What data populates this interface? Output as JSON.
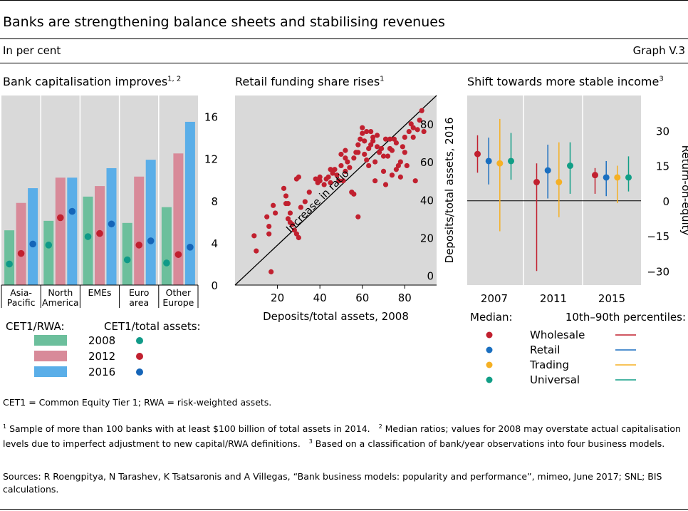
{
  "header": {
    "title": "Banks are strengthening balance sheets and stabilising revenues",
    "subtitle": "In per cent",
    "graph_label": "Graph V.3"
  },
  "panels": {
    "left": {
      "title": "Bank capitalisation improves",
      "sup": "1, 2"
    },
    "middle": {
      "title": "Retail funding share rises",
      "sup": "1",
      "xlabel": "Deposits/total assets, 2008",
      "ylabel": "Deposits/total assets, 2016",
      "annotation": "Increase in ratio"
    },
    "right": {
      "title": "Shift towards more stable income",
      "sup": "3",
      "ylabel": "Return-on-equity"
    }
  },
  "legend_left": {
    "rwa_title": "CET1/RWA:",
    "ta_title": "CET1/total assets:",
    "items": [
      {
        "label": "2008",
        "color": "#6cbf9c",
        "dot": "#109a88"
      },
      {
        "label": "2012",
        "color": "#d88a99",
        "dot": "#c1202f"
      },
      {
        "label": "2016",
        "color": "#5aaee8",
        "dot": "#1565b8"
      }
    ]
  },
  "legend_right": {
    "median_title": "Median:",
    "pct_title": "10th–90th percentiles:",
    "items": [
      {
        "label": "Wholesale",
        "color": "#c1202f"
      },
      {
        "label": "Retail",
        "color": "#1a6fc0"
      },
      {
        "label": "Trading",
        "color": "#f5b024"
      },
      {
        "label": "Universal",
        "color": "#119e86"
      }
    ]
  },
  "notes": {
    "abbrev": "CET1 = Common Equity Tier 1; RWA = risk-weighted assets.",
    "fn1": "Sample of more than 100 banks with at least $100 billion of total assets in 2014.",
    "fn2": "Median ratios; values for 2008 may overstate actual capitalisation levels due to imperfect adjustment to new capital/RWA definitions.",
    "fn3": "Based on a classification of bank/year observations into four business models.",
    "sources": "Sources: R Roengpitya, N Tarashev, K Tsatsaronis and A Villegas, “Bank business models: popularity and performance”, mimeo, June 2017; SNL; BIS calculations."
  },
  "chart_data": [
    {
      "type": "bar",
      "title": "Bank capitalisation improves",
      "categories": [
        "Asia-Pacific",
        "North America",
        "EMEs",
        "Euro area",
        "Other Europe"
      ],
      "ylim": [
        0,
        18
      ],
      "yticks": [
        0,
        4,
        8,
        12,
        16
      ],
      "series": [
        {
          "name": "2008",
          "values": [
            5.2,
            6.1,
            8.4,
            5.9,
            7.4
          ]
        },
        {
          "name": "2012",
          "values": [
            7.8,
            10.2,
            9.4,
            10.3,
            12.5
          ]
        },
        {
          "name": "2016",
          "values": [
            9.2,
            10.2,
            11.1,
            11.9,
            15.5
          ]
        }
      ],
      "dot_series": [
        {
          "name": "2008",
          "values": [
            2.0,
            3.8,
            4.6,
            2.4,
            2.1
          ]
        },
        {
          "name": "2012",
          "values": [
            3.0,
            6.4,
            4.9,
            3.8,
            2.9
          ]
        },
        {
          "name": "2016",
          "values": [
            3.9,
            7.0,
            5.8,
            4.2,
            3.6
          ]
        }
      ]
    },
    {
      "type": "scatter",
      "title": "Retail funding share rises",
      "xlabel": "Deposits/total assets, 2008",
      "ylabel": "Deposits/total assets, 2016",
      "xlim": [
        0,
        95
      ],
      "ylim": [
        -5,
        95
      ],
      "xticks": [
        20,
        40,
        60,
        80
      ],
      "yticks": [
        0,
        20,
        40,
        60,
        80
      ],
      "reference_line": "45-degree",
      "points": [
        [
          9,
          21
        ],
        [
          10,
          13
        ],
        [
          15,
          31
        ],
        [
          16,
          26
        ],
        [
          16,
          22
        ],
        [
          17,
          2
        ],
        [
          18,
          37
        ],
        [
          19,
          33
        ],
        [
          23,
          46
        ],
        [
          24,
          42
        ],
        [
          24,
          38
        ],
        [
          25,
          38
        ],
        [
          25,
          30
        ],
        [
          26,
          28
        ],
        [
          27,
          27
        ],
        [
          26,
          33
        ],
        [
          28,
          24
        ],
        [
          29,
          22
        ],
        [
          30,
          20
        ],
        [
          31,
          36
        ],
        [
          33,
          39
        ],
        [
          35,
          44
        ],
        [
          29,
          51
        ],
        [
          30,
          52
        ],
        [
          38,
          51
        ],
        [
          39,
          49
        ],
        [
          40,
          52
        ],
        [
          40,
          50
        ],
        [
          42,
          48
        ],
        [
          43,
          51
        ],
        [
          44,
          52
        ],
        [
          45,
          49
        ],
        [
          46,
          54
        ],
        [
          47,
          56
        ],
        [
          48,
          53
        ],
        [
          49,
          50
        ],
        [
          50,
          58
        ],
        [
          51,
          50
        ],
        [
          52,
          55
        ],
        [
          53,
          60
        ],
        [
          52,
          62
        ],
        [
          54,
          57
        ],
        [
          55,
          44
        ],
        [
          56,
          43
        ],
        [
          56,
          62
        ],
        [
          57,
          65
        ],
        [
          58,
          65
        ],
        [
          58,
          69
        ],
        [
          59,
          72
        ],
        [
          60,
          75
        ],
        [
          61,
          64
        ],
        [
          61,
          71
        ],
        [
          62,
          76
        ],
        [
          62,
          61
        ],
        [
          63,
          67
        ],
        [
          63,
          58
        ],
        [
          64,
          69
        ],
        [
          64,
          76
        ],
        [
          65,
          73
        ],
        [
          65,
          71
        ],
        [
          66,
          50
        ],
        [
          66,
          60
        ],
        [
          67,
          68
        ],
        [
          67,
          74
        ],
        [
          68,
          65
        ],
        [
          69,
          67
        ],
        [
          70,
          63
        ],
        [
          70,
          55
        ],
        [
          71,
          48
        ],
        [
          71,
          72
        ],
        [
          72,
          63
        ],
        [
          73,
          67
        ],
        [
          74,
          53
        ],
        [
          74,
          66
        ],
        [
          75,
          72
        ],
        [
          76,
          70
        ],
        [
          76,
          56
        ],
        [
          77,
          58
        ],
        [
          78,
          60
        ],
        [
          78,
          52
        ],
        [
          79,
          68
        ],
        [
          80,
          73
        ],
        [
          80,
          65
        ],
        [
          81,
          58
        ],
        [
          82,
          76
        ],
        [
          83,
          80
        ],
        [
          84,
          73
        ],
        [
          84,
          78
        ],
        [
          85,
          50
        ],
        [
          86,
          77
        ],
        [
          87,
          82
        ],
        [
          88,
          87
        ],
        [
          89,
          76
        ],
        [
          58,
          31
        ],
        [
          55,
          44
        ],
        [
          45,
          56
        ],
        [
          50,
          64
        ],
        [
          52,
          66
        ],
        [
          60,
          78
        ],
        [
          73,
          72
        ]
      ]
    },
    {
      "type": "scatter",
      "title": "Shift towards more stable income",
      "ylabel": "Return-on-equity",
      "ylim": [
        -36,
        45
      ],
      "yticks": [
        -30,
        -15,
        0,
        15,
        30
      ],
      "x_groups": [
        "2007",
        "2011",
        "2015"
      ],
      "series": [
        {
          "name": "Wholesale",
          "median": [
            20,
            8,
            11
          ],
          "p10_p90": [
            [
              12,
              28
            ],
            [
              -30,
              16
            ],
            [
              3,
              14
            ]
          ]
        },
        {
          "name": "Retail",
          "median": [
            17,
            13,
            10
          ],
          "p10_p90": [
            [
              7,
              27
            ],
            [
              1,
              24
            ],
            [
              2,
              17
            ]
          ]
        },
        {
          "name": "Trading",
          "median": [
            16,
            8,
            10
          ],
          "p10_p90": [
            [
              -13,
              35
            ],
            [
              -7,
              25
            ],
            [
              -1,
              15
            ]
          ]
        },
        {
          "name": "Universal",
          "median": [
            17,
            15,
            10
          ],
          "p10_p90": [
            [
              9,
              29
            ],
            [
              3,
              25
            ],
            [
              4,
              19
            ]
          ]
        }
      ]
    }
  ]
}
